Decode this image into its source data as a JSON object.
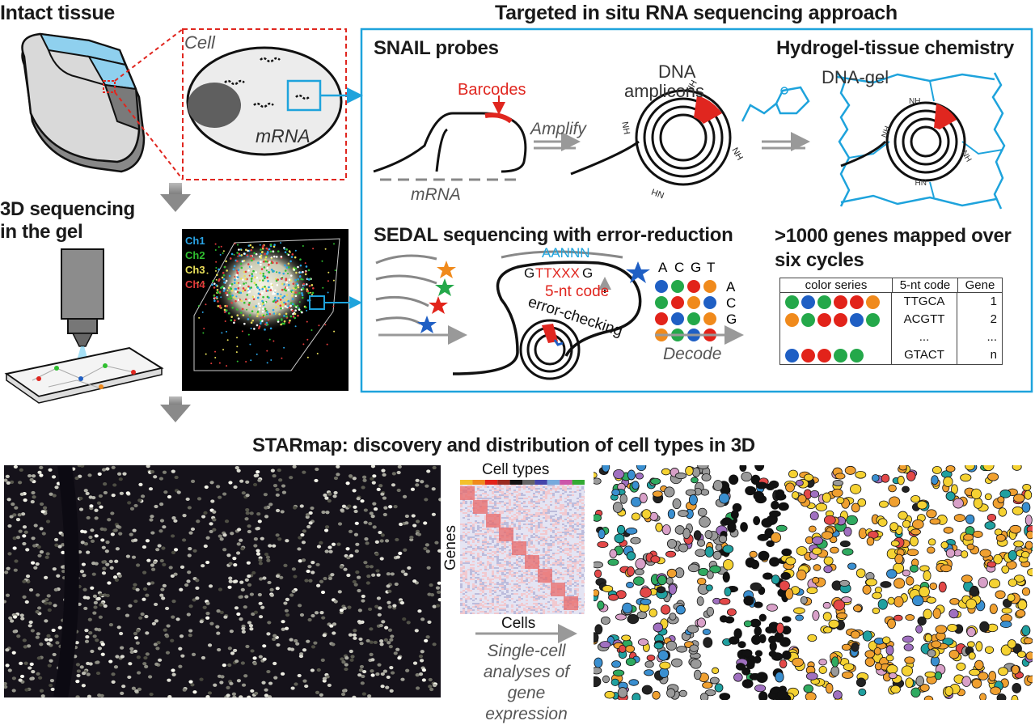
{
  "headers": {
    "intact_tissue": "Intact tissue",
    "targeted": "Targeted in situ RNA sequencing approach",
    "seq3d_line1": "3D sequencing",
    "seq3d_line2": "in the gel",
    "snail": "SNAIL probes",
    "hydrogel": "Hydrogel-tissue chemistry",
    "sedal": "SEDAL sequencing with error-reduction",
    "genes_line1": ">1000 genes mapped over",
    "genes_line2": "six cycles",
    "starmap": "STARmap: discovery and distribution of cell types in 3D"
  },
  "cell": {
    "label": "Cell",
    "mrna": "mRNA"
  },
  "channels": [
    "Ch1",
    "Ch2",
    "Ch3",
    "Ch4"
  ],
  "channel_colors": [
    "#2aa4e6",
    "#2fbf2f",
    "#e8e05a",
    "#e23b3b"
  ],
  "snail_panel": {
    "barcodes": "Barcodes",
    "amplify": "Amplify",
    "mrna": "mRNA",
    "dna_line1": "DNA",
    "dna_line2": "amplicons",
    "nh2": "NH",
    "nh2_sub": "2",
    "dna_gel": "DNA-gel",
    "nh": "NH"
  },
  "sedal_panel": {
    "seq_top": "AANNN",
    "seq_g1": "G",
    "seq_mid": "TTXXX",
    "seq_g2": "G",
    "code": "5-nt code",
    "error": "error-checking",
    "acgt_letters": [
      "A",
      "C",
      "G",
      "T"
    ],
    "decode": "Decode"
  },
  "gene_table": {
    "headers": [
      "color series",
      "5-nt code",
      "Gene"
    ],
    "rows": [
      {
        "colors": [
          "green",
          "blue",
          "green",
          "red",
          "red",
          "orange"
        ],
        "code": "TTGCA",
        "gene": "1"
      },
      {
        "colors": [
          "orange",
          "green",
          "red",
          "red",
          "blue",
          "green"
        ],
        "code": "ACGTT",
        "gene": "2"
      },
      {
        "colors": [],
        "code": "...",
        "gene": "..."
      },
      {
        "colors": [
          "blue",
          "red",
          "red",
          "green",
          "green"
        ],
        "code": "GTACT",
        "gene": "n"
      }
    ],
    "ellipsis": "..."
  },
  "bottom": {
    "cell_types": "Cell types",
    "genes": "Genes",
    "cells": "Cells",
    "analysis_line1": "Single-cell",
    "analysis_line2": "analyses of gene",
    "analysis_line3": "expression"
  },
  "colors": {
    "accent_blue": "#1ea3dc",
    "red": "#e0261f",
    "gray_arrow": "#9a9a9a",
    "dot_green": "#24a84a",
    "dot_blue": "#1f5fc4",
    "dot_red": "#e2231a",
    "dot_orange": "#f08a1c"
  }
}
